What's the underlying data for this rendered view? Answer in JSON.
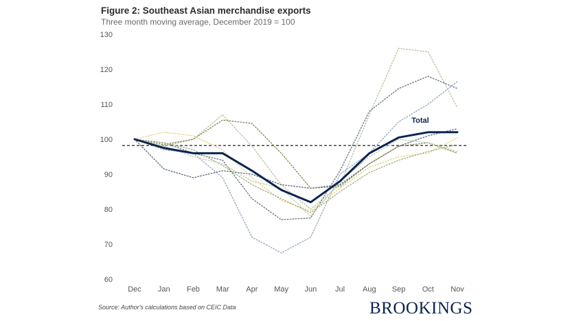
{
  "header": {
    "title": "Figure 2: Southeast Asian merchandise exports",
    "subtitle": "Three month moving average, December 2019 = 100"
  },
  "footer": {
    "source": "Source: Author's calculations based on CEIC Data",
    "brand": "BROOKINGS"
  },
  "chart_data": {
    "type": "line",
    "categories": [
      "Dec",
      "Jan",
      "Feb",
      "Mar",
      "Apr",
      "May",
      "Jun",
      "Jul",
      "Aug",
      "Sep",
      "Oct",
      "Nov"
    ],
    "ylim": [
      60,
      130
    ],
    "yticks": [
      60,
      70,
      80,
      90,
      100,
      110,
      120,
      130
    ],
    "grid": false,
    "reference_line": {
      "value": 98.2,
      "style": "dashed"
    },
    "series": [
      {
        "label": "Total",
        "values": [
          100,
          97.5,
          96,
          96,
          91,
          85.5,
          82,
          88,
          96,
          100.5,
          102,
          102
        ],
        "color": "#0b2350",
        "style": "solid"
      },
      {
        "values": [
          100,
          98,
          100,
          107,
          98,
          87,
          80,
          87,
          107,
          126,
          125,
          109
        ],
        "color": "#b7c4a3",
        "style": "dotted"
      },
      {
        "values": [
          100,
          99,
          96,
          94,
          83,
          77,
          77.5,
          91,
          108,
          114.5,
          118,
          114.5
        ],
        "color": "#6e7a8c",
        "style": "dotted"
      },
      {
        "values": [
          100,
          97,
          96,
          89,
          72,
          67.5,
          72,
          90,
          96,
          105,
          110,
          116.5
        ],
        "color": "#9aa8bd",
        "style": "dotted"
      },
      {
        "values": [
          100,
          91.5,
          89,
          91,
          90,
          87,
          86,
          87,
          93,
          98,
          101,
          103
        ],
        "color": "#5d6e87",
        "style": "dotted"
      },
      {
        "values": [
          100,
          98.5,
          100,
          105.5,
          104.5,
          96,
          86,
          86.5,
          93,
          98,
          99,
          96
        ],
        "color": "#8b8a55",
        "style": "dotted"
      },
      {
        "values": [
          100,
          102,
          101,
          97,
          89,
          82.5,
          79.5,
          86,
          92,
          95,
          96,
          100.5
        ],
        "color": "#e2d48a",
        "style": "dotted"
      },
      {
        "values": [
          100,
          99,
          97,
          92.5,
          87,
          83,
          79,
          85,
          90.5,
          94,
          96.5,
          98.5
        ],
        "color": "#a9b07e",
        "style": "dotted"
      },
      {
        "values": [
          100,
          98,
          95,
          93,
          88,
          86,
          78,
          88,
          95,
          100,
          99,
          96.5
        ],
        "color": "#c4cdb0",
        "style": "dotted"
      }
    ]
  }
}
